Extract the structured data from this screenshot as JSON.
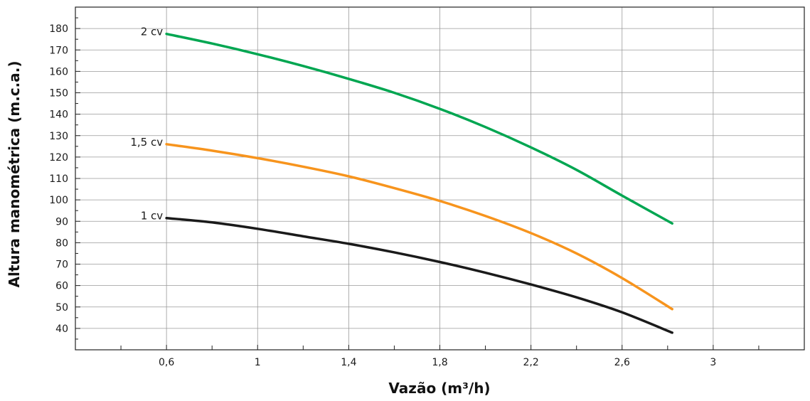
{
  "chart_data": {
    "type": "line",
    "xlabel": "Vazão (m³/h)",
    "ylabel": "Altura manométrica (m.c.a.)",
    "xlim": [
      0.2,
      3.4
    ],
    "ylim": [
      30,
      190
    ],
    "grid": true,
    "x_ticks": [
      0.6,
      1,
      1.4,
      1.8,
      2.2,
      2.6,
      3
    ],
    "x_tick_labels": [
      "0,6",
      "1",
      "1,4",
      "1,8",
      "2,2",
      "2,6",
      "3"
    ],
    "x_minor_ticks": [
      0.4,
      0.8,
      1.2,
      1.6,
      2.0,
      2.4,
      2.8,
      3.2
    ],
    "y_ticks": [
      40,
      50,
      60,
      70,
      80,
      90,
      100,
      110,
      120,
      130,
      140,
      150,
      160,
      170,
      180
    ],
    "y_tick_labels": [
      "40",
      "50",
      "60",
      "70",
      "80",
      "90",
      "100",
      "110",
      "120",
      "130",
      "140",
      "150",
      "160",
      "170",
      "180"
    ],
    "series": [
      {
        "name": "2 cv",
        "color": "#00a651",
        "x": [
          0.6,
          0.8,
          1.0,
          1.2,
          1.4,
          1.6,
          1.8,
          2.0,
          2.2,
          2.4,
          2.6,
          2.82
        ],
        "y": [
          177.5,
          173,
          168,
          162.5,
          156.5,
          150,
          142.5,
          134,
          124.5,
          114,
          102,
          89
        ]
      },
      {
        "name": "1,5 cv",
        "color": "#f7941d",
        "x": [
          0.6,
          0.8,
          1.0,
          1.2,
          1.4,
          1.6,
          1.8,
          2.0,
          2.2,
          2.4,
          2.6,
          2.82
        ],
        "y": [
          126,
          123,
          119.5,
          115.5,
          111,
          105.5,
          99.5,
          92.5,
          84.5,
          75,
          63.5,
          49
        ]
      },
      {
        "name": "1 cv",
        "color": "#1a1a1a",
        "x": [
          0.6,
          0.8,
          1.0,
          1.2,
          1.4,
          1.6,
          1.8,
          2.0,
          2.2,
          2.4,
          2.6,
          2.82
        ],
        "y": [
          91.5,
          89.5,
          86.5,
          83,
          79.5,
          75.5,
          71,
          66,
          60.5,
          54.5,
          47.5,
          38
        ]
      }
    ]
  }
}
